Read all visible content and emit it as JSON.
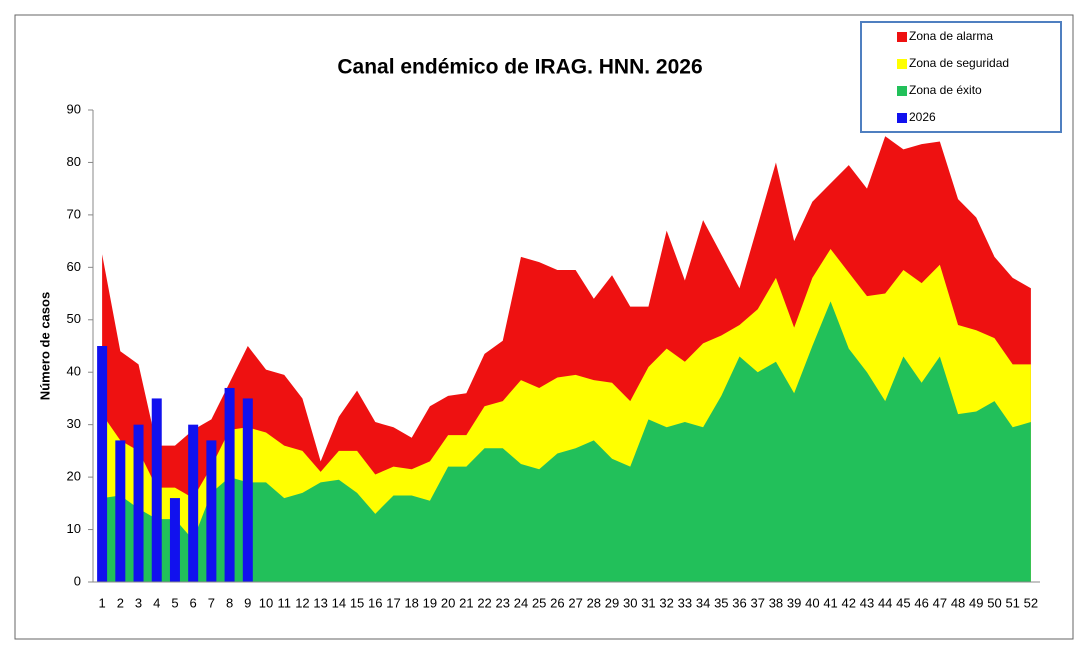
{
  "chart_data": {
    "type": "endemic-channel",
    "title": "Canal endémico de IRAG. HNN. 2026",
    "y_label": "Número de casos",
    "categories": [
      "1",
      "2",
      "3",
      "4",
      "5",
      "6",
      "7",
      "8",
      "9",
      "10",
      "11",
      "12",
      "13",
      "14",
      "15",
      "16",
      "17",
      "18",
      "19",
      "20",
      "21",
      "22",
      "23",
      "24",
      "25",
      "26",
      "27",
      "28",
      "29",
      "30",
      "31",
      "32",
      "33",
      "34",
      "35",
      "36",
      "37",
      "38",
      "39",
      "40",
      "41",
      "42",
      "43",
      "44",
      "45",
      "46",
      "47",
      "48",
      "49",
      "50",
      "51",
      "52"
    ],
    "ylim": [
      0,
      90
    ],
    "yticks": [
      0,
      10,
      20,
      30,
      40,
      50,
      60,
      70,
      80,
      90
    ],
    "legend": "top-right",
    "series": [
      {
        "name": "Zona de alarma",
        "color": "#ee1111",
        "kind": "area",
        "values": [
          62.5,
          44,
          41.5,
          26,
          26,
          29,
          31,
          38,
          45,
          40.5,
          39.5,
          35,
          23,
          31.5,
          36.5,
          30.5,
          29.5,
          27.5,
          33.5,
          35.5,
          36,
          43.5,
          46,
          62,
          61,
          59.5,
          59.5,
          54,
          58.5,
          52.5,
          52.5,
          67,
          57.5,
          69,
          62.5,
          56,
          68,
          80,
          65,
          72.5,
          76,
          79.5,
          75,
          85,
          82.5,
          83.5,
          84,
          73,
          69.5,
          62,
          58,
          56
        ]
      },
      {
        "name": "Zona de seguridad",
        "color": "#ffff00",
        "kind": "area",
        "values": [
          32,
          27,
          25,
          18,
          18,
          16,
          22,
          29,
          29.5,
          28.5,
          26,
          25,
          21,
          25,
          25,
          20.5,
          22,
          21.5,
          23,
          28,
          28,
          33.5,
          34.5,
          38.5,
          37,
          39,
          39.5,
          38.5,
          38,
          34.5,
          41,
          44.5,
          42,
          45.5,
          47,
          49,
          52,
          58,
          48.5,
          58,
          63.5,
          59,
          54.5,
          55,
          59.5,
          57,
          60.5,
          49,
          48,
          46.5,
          41.5,
          41.5
        ]
      },
      {
        "name": "Zona de éxito",
        "color": "#22c05a",
        "kind": "area",
        "values": [
          16,
          16.5,
          14,
          12,
          12,
          8,
          17,
          20,
          19,
          19,
          16,
          17,
          19,
          19.5,
          17,
          13,
          16.5,
          16.5,
          15.5,
          22,
          22,
          25.5,
          25.5,
          22.5,
          21.5,
          24.5,
          25.5,
          27,
          23.5,
          22,
          31,
          29.5,
          30.5,
          29.5,
          35.5,
          43,
          40,
          42,
          36,
          45,
          53.5,
          44.5,
          40,
          34.5,
          43,
          38,
          43,
          32,
          32.5,
          34.5,
          29.5,
          30.5
        ]
      },
      {
        "name": "2026",
        "color": "#1111ee",
        "kind": "bar",
        "values": [
          45,
          27,
          30,
          35,
          16,
          30,
          27,
          37,
          35,
          null,
          null,
          null,
          null,
          null,
          null,
          null,
          null,
          null,
          null,
          null,
          null,
          null,
          null,
          null,
          null,
          null,
          null,
          null,
          null,
          null,
          null,
          null,
          null,
          null,
          null,
          null,
          null,
          null,
          null,
          null,
          null,
          null,
          null,
          null,
          null,
          null,
          null,
          null,
          null,
          null,
          null,
          null
        ]
      }
    ]
  }
}
